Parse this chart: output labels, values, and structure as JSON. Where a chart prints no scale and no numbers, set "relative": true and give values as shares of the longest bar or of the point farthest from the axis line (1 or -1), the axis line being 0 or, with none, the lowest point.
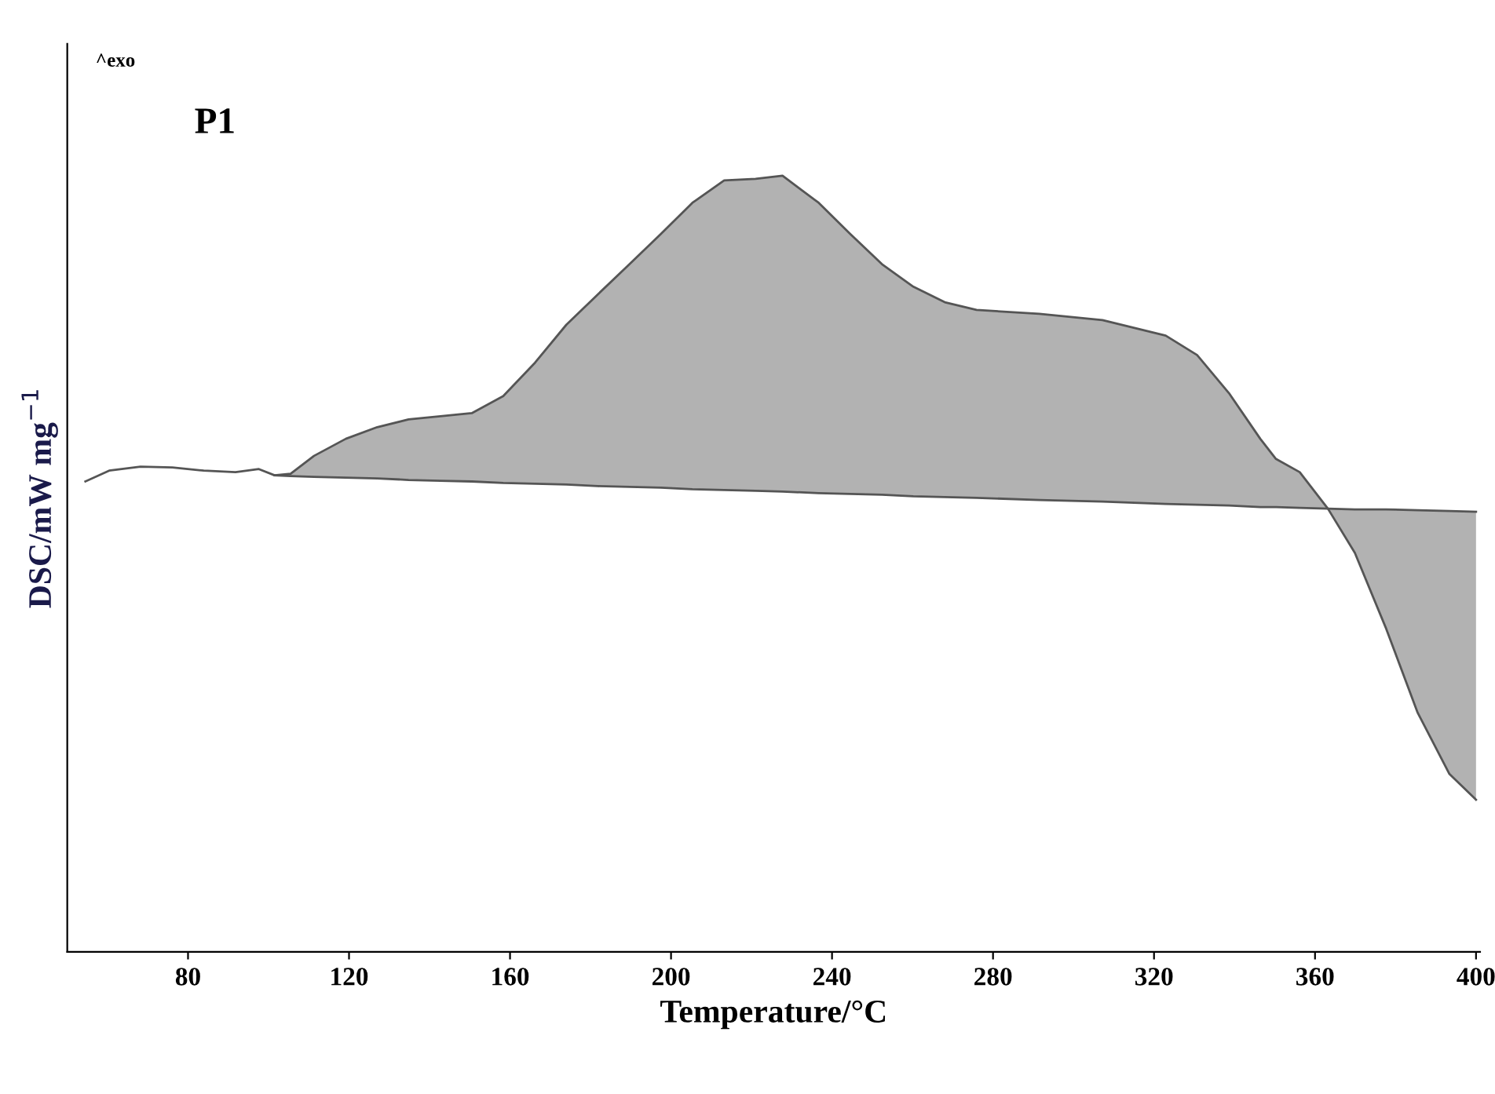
{
  "chart_data": {
    "type": "line",
    "relative": true,
    "xlabel": "Temperature/°C",
    "ylabel": "DSC/mW mg$^{−1}$",
    "annotations": [
      "^exo",
      "P1"
    ],
    "xlim": [
      50,
      401
    ],
    "xticks": [
      80,
      120,
      160,
      200,
      240,
      280,
      320,
      360,
      400
    ],
    "tick_labels": "x",
    "series": [
      {
        "color": "#555555",
        "x": [
          54.5,
          60.4,
          68.2,
          76.1,
          83.9,
          91.8,
          97.6,
          101.5,
          105.5,
          111.3,
          119.2,
          127.0,
          134.8,
          142.7,
          150.5,
          158.3,
          166.2,
          174.0,
          181.8,
          189.7,
          197.5,
          205.3,
          213.2,
          221.0,
          227.7,
          236.7,
          244.5,
          252.4,
          260.2,
          268.0,
          275.9,
          291.5,
          307.2,
          322.9,
          330.7,
          338.6,
          346.4,
          350.3,
          356.2,
          363.2,
          369.9,
          377.7,
          385.5,
          393.4,
          400
        ],
        "values": [
          0.606,
          0.62,
          0.625,
          0.624,
          0.62,
          0.618,
          0.622,
          0.614,
          0.616,
          0.639,
          0.661,
          0.676,
          0.686,
          0.69,
          0.694,
          0.716,
          0.759,
          0.808,
          0.847,
          0.886,
          0.925,
          0.965,
          0.994,
          0.996,
          1.0,
          0.965,
          0.925,
          0.886,
          0.857,
          0.837,
          0.827,
          0.822,
          0.814,
          0.794,
          0.769,
          0.72,
          0.661,
          0.635,
          0.618,
          0.571,
          0.514,
          0.416,
          0.308,
          0.229,
          0.196
        ]
      },
      {
        "color": "#555555",
        "x": [
          101.5,
          105.5,
          111.3,
          119.2,
          127.0,
          134.8,
          142.7,
          150.5,
          158.3,
          166.2,
          174.0,
          181.8,
          189.7,
          197.5,
          205.3,
          213.2,
          221.0,
          227.7,
          236.7,
          244.5,
          252.4,
          260.2,
          268.0,
          275.9,
          291.5,
          307.2,
          322.9,
          330.7,
          338.6,
          346.4,
          350.3,
          356.2,
          363.2,
          369.9,
          377.7,
          385.5,
          393.4,
          400
        ],
        "values": [
          0.614,
          0.613,
          0.612,
          0.611,
          0.61,
          0.608,
          0.607,
          0.606,
          0.604,
          0.603,
          0.602,
          0.6,
          0.599,
          0.598,
          0.596,
          0.595,
          0.594,
          0.593,
          0.591,
          0.59,
          0.589,
          0.587,
          0.586,
          0.585,
          0.582,
          0.58,
          0.577,
          0.576,
          0.575,
          0.573,
          0.573,
          0.572,
          0.571,
          0.57,
          0.57,
          0.569,
          0.568,
          0.567
        ],
        "lower": [
          0.614,
          0.613,
          0.612,
          0.611,
          0.61,
          0.608,
          0.607,
          0.606,
          0.604,
          0.603,
          0.602,
          0.6,
          0.599,
          0.598,
          0.596,
          0.595,
          0.594,
          0.593,
          0.591,
          0.59,
          0.589,
          0.587,
          0.586,
          0.585,
          0.582,
          0.58,
          0.577,
          0.576,
          0.575,
          0.573,
          0.573,
          0.572,
          0.571,
          0.514,
          0.416,
          0.308,
          0.229,
          0.196
        ],
        "upper": [
          0.614,
          0.616,
          0.639,
          0.661,
          0.676,
          0.686,
          0.69,
          0.694,
          0.716,
          0.759,
          0.808,
          0.847,
          0.886,
          0.925,
          0.965,
          0.994,
          0.996,
          1.0,
          0.965,
          0.925,
          0.886,
          0.857,
          0.837,
          0.827,
          0.822,
          0.814,
          0.794,
          0.769,
          0.72,
          0.661,
          0.635,
          0.618,
          0.571,
          0.57,
          0.57,
          0.569,
          0.568,
          0.567
        ]
      }
    ]
  }
}
